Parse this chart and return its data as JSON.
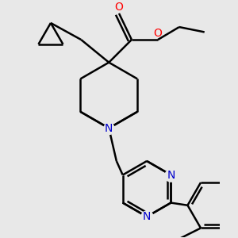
{
  "bg_color": "#e8e8e8",
  "bond_color": "#000000",
  "N_color": "#0000cd",
  "O_color": "#ff0000",
  "line_width": 1.8,
  "figsize": [
    3.0,
    3.0
  ],
  "dpi": 100,
  "xlim": [
    -1.8,
    2.2
  ],
  "ylim": [
    -2.8,
    1.8
  ]
}
